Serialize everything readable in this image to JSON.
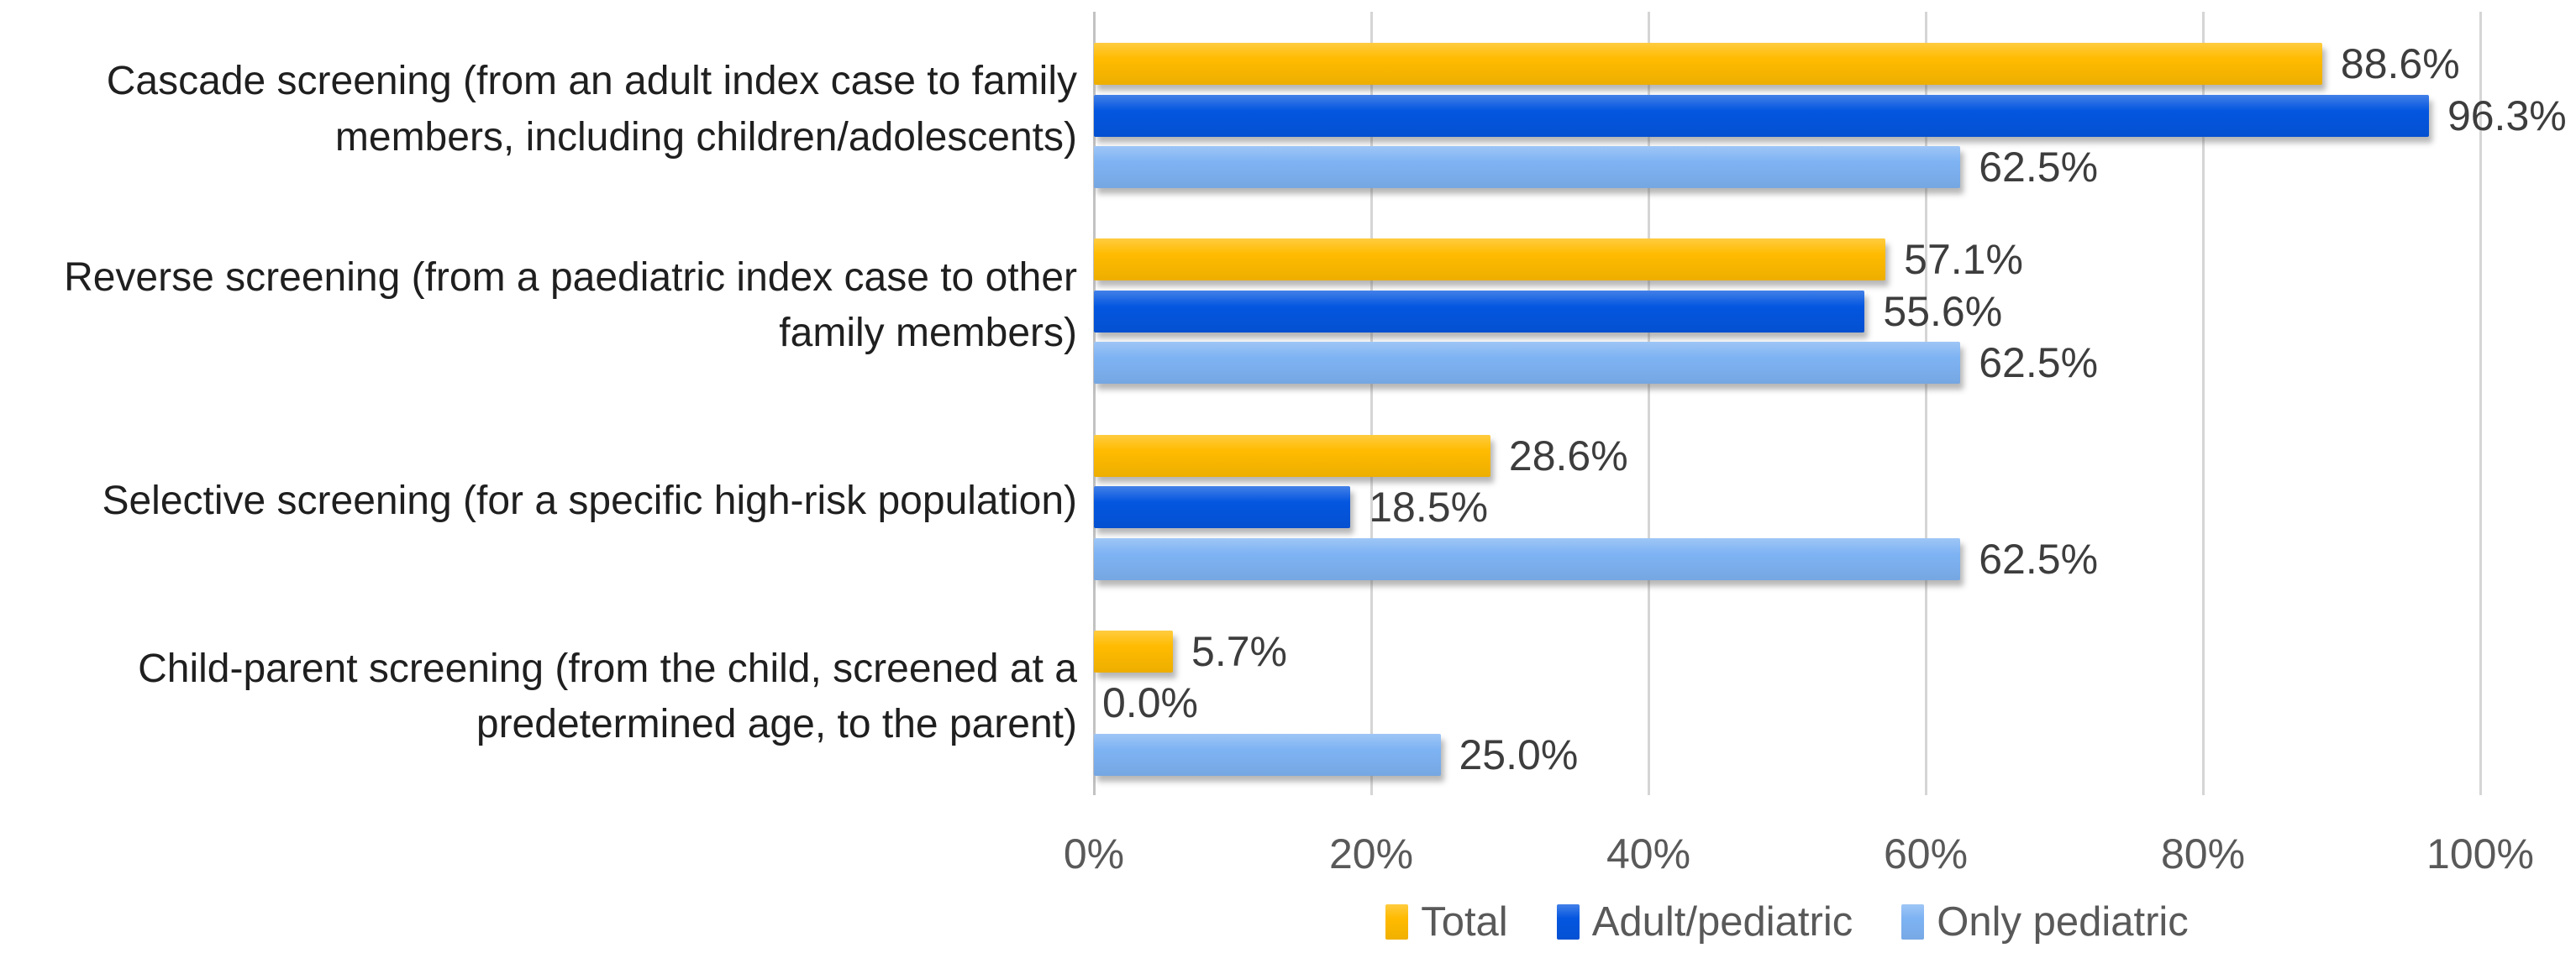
{
  "chart_data": {
    "type": "bar",
    "orientation": "horizontal",
    "title": "",
    "categories": [
      "Cascade screening (from an adult index case to family members, including children/adolescents)",
      "Reverse screening (from a paediatric index case to other family members)",
      "Selective screening (for a specific high-risk population)",
      "Child-parent screening (from the child, screened at a predetermined age, to the parent)"
    ],
    "series": [
      {
        "name": "Total",
        "color": "#FFBB00",
        "values": [
          88.6,
          57.1,
          28.6,
          5.7
        ]
      },
      {
        "name": "Adult/pediatric",
        "color": "#0456E0",
        "values": [
          96.3,
          55.6,
          18.5,
          0.0
        ]
      },
      {
        "name": "Only pediatric",
        "color": "#7EB3F3",
        "values": [
          62.5,
          62.5,
          62.5,
          25.0
        ]
      }
    ],
    "data_labels": {
      "visible": true,
      "suffix": "%",
      "decimals": 1,
      "labels": [
        [
          "88.6%",
          "96.3%",
          "62.5%"
        ],
        [
          "57.1%",
          "55.6%",
          "62.5%"
        ],
        [
          "28.6%",
          "18.5%",
          "62.5%"
        ],
        [
          "5.7%",
          "0.0%",
          "25.0%"
        ]
      ]
    },
    "x_axis": {
      "min": 0,
      "max": 100,
      "tick_step": 20,
      "tick_labels": [
        "0%",
        "20%",
        "40%",
        "60%",
        "80%",
        "100%"
      ],
      "gridlines": true
    },
    "legend": {
      "position": "bottom",
      "entries": [
        "Total",
        "Adult/pediatric",
        "Only pediatric"
      ]
    },
    "colors": {
      "gridline": "#d5d5d5",
      "axis_line": "#c2c2c2",
      "category_label_text": "#1f1f1f",
      "value_label_text": "#3d3d3d",
      "tick_label_text": "#595959",
      "legend_text": "#595959",
      "background": "#ffffff"
    }
  }
}
